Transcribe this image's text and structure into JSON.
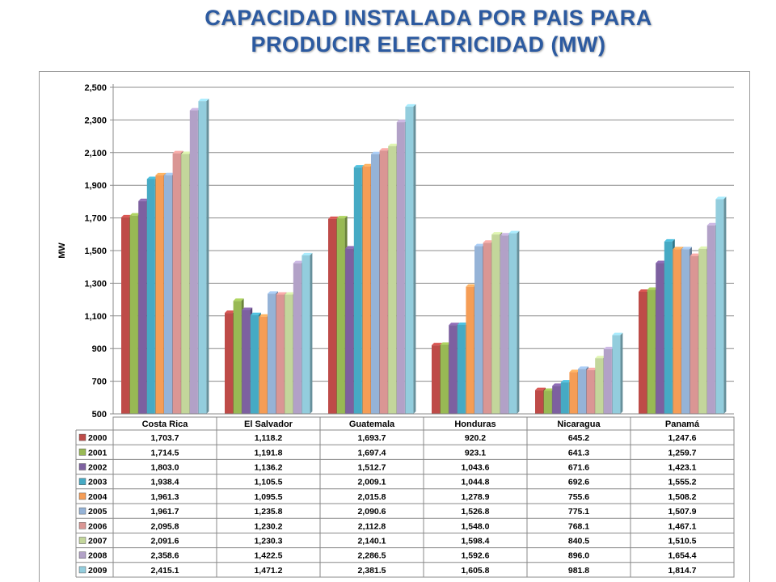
{
  "title": {
    "line1": "CAPACIDAD INSTALADA POR PAIS PARA",
    "line2": "PRODUCIR ELECTRICIDAD (MW)"
  },
  "chart_data": {
    "type": "bar",
    "title": "CAPACIDAD INSTALADA POR PAIS PARA PRODUCIR ELECTRICIDAD (MW)",
    "ylabel": "MW",
    "xlabel": "",
    "ylim": [
      500,
      2500
    ],
    "yticks": [
      "500",
      "700",
      "900",
      "1,100",
      "1,300",
      "1,500",
      "1,700",
      "1,900",
      "2,100",
      "2,300",
      "2,500"
    ],
    "ytick_values": [
      500,
      700,
      900,
      1100,
      1300,
      1500,
      1700,
      1900,
      2100,
      2300,
      2500
    ],
    "grid": true,
    "legend": "data table below chart",
    "categories": [
      "Costa Rica",
      "El Salvador",
      "Guatemala",
      "Honduras",
      "Nicaragua",
      "Panamá"
    ],
    "series": [
      {
        "name": "2000",
        "color": "#be4b48",
        "values": [
          1703.7,
          1118.2,
          1693.7,
          920.2,
          645.2,
          1247.6
        ],
        "labels": [
          "1,703.7",
          "1,118.2",
          "1,693.7",
          "920.2",
          "645.2",
          "1,247.6"
        ]
      },
      {
        "name": "2001",
        "color": "#98b954",
        "values": [
          1714.5,
          1191.8,
          1697.4,
          923.1,
          641.3,
          1259.7
        ],
        "labels": [
          "1,714.5",
          "1,191.8",
          "1,697.4",
          "923.1",
          "641.3",
          "1,259.7"
        ]
      },
      {
        "name": "2002",
        "color": "#7d60a0",
        "values": [
          1803.0,
          1136.2,
          1512.7,
          1043.6,
          671.6,
          1423.1
        ],
        "labels": [
          "1,803.0",
          "1,136.2",
          "1,512.7",
          "1,043.6",
          "671.6",
          "1,423.1"
        ]
      },
      {
        "name": "2003",
        "color": "#46aac4",
        "values": [
          1938.4,
          1105.5,
          2009.1,
          1044.8,
          692.6,
          1555.2
        ],
        "labels": [
          "1,938.4",
          "1,105.5",
          "2,009.1",
          "1,044.8",
          "692.6",
          "1,555.2"
        ]
      },
      {
        "name": "2004",
        "color": "#f59d56",
        "values": [
          1961.3,
          1095.5,
          2015.8,
          1278.9,
          755.6,
          1508.2
        ],
        "labels": [
          "1,961.3",
          "1,095.5",
          "2,015.8",
          "1,278.9",
          "755.6",
          "1,508.2"
        ]
      },
      {
        "name": "2005",
        "color": "#95b3d7",
        "values": [
          1961.7,
          1235.8,
          2090.6,
          1526.8,
          775.1,
          1507.9
        ],
        "labels": [
          "1,961.7",
          "1,235.8",
          "2,090.6",
          "1,526.8",
          "775.1",
          "1,507.9"
        ]
      },
      {
        "name": "2006",
        "color": "#da9694",
        "values": [
          2095.8,
          1230.2,
          2112.8,
          1548.0,
          768.1,
          1467.1
        ],
        "labels": [
          "2,095.8",
          "1,230.2",
          "2,112.8",
          "1,548.0",
          "768.1",
          "1,467.1"
        ]
      },
      {
        "name": "2007",
        "color": "#c3d69b",
        "values": [
          2091.6,
          1230.3,
          2140.1,
          1598.4,
          840.5,
          1510.5
        ],
        "labels": [
          "2,091.6",
          "1,230.3",
          "2,140.1",
          "1,598.4",
          "840.5",
          "1,510.5"
        ]
      },
      {
        "name": "2008",
        "color": "#b2a1c7",
        "values": [
          2358.6,
          1422.5,
          2286.5,
          1592.6,
          896.0,
          1654.4
        ],
        "labels": [
          "2,358.6",
          "1,422.5",
          "2,286.5",
          "1,592.6",
          "896.0",
          "1,654.4"
        ]
      },
      {
        "name": "2009",
        "color": "#93cddd",
        "values": [
          2415.1,
          1471.2,
          2381.5,
          1605.8,
          981.8,
          1814.7
        ],
        "labels": [
          "2,415.1",
          "1,471.2",
          "2,381.5",
          "1,605.8",
          "981.8",
          "1,814.7"
        ]
      }
    ]
  }
}
